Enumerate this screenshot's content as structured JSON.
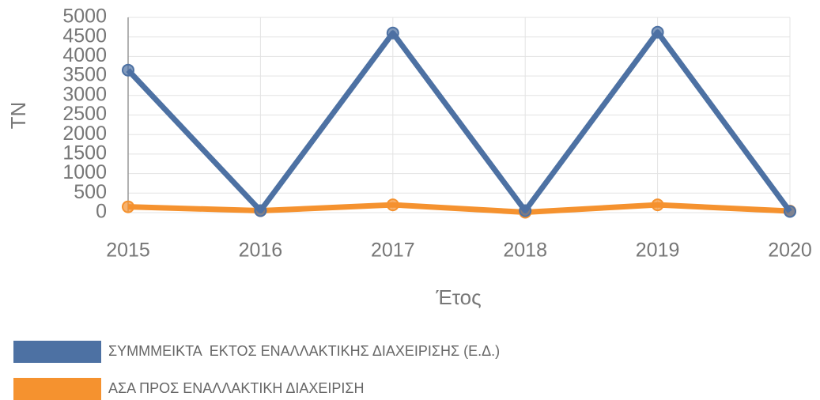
{
  "chart_data": {
    "type": "line",
    "xlabel": "Έτος",
    "ylabel": "TN",
    "categories": [
      "2015",
      "2016",
      "2017",
      "2018",
      "2019",
      "2020"
    ],
    "series": [
      {
        "name": "ΣΥΜΜΜΕΙΚΤΑ  ΕΚΤΟΣ ΕΝΑΛΛΑΚΤΙΚΗΣ ΔΙΑΧΕΙΡΙΣΗΣ (Ε.Δ.)",
        "color": "#4d71a3",
        "values": [
          3650,
          50,
          4600,
          50,
          4620,
          30
        ]
      },
      {
        "name": "ΑΣΑ ΠΡΟΣ ΕΝΑΛΛΑΚΤΙΚΗ ΔΙΑΧΕΙΡΙΣΗ",
        "color": "#f5922f",
        "values": [
          150,
          50,
          200,
          10,
          200,
          40
        ]
      }
    ],
    "ylim": [
      0,
      5000
    ],
    "yticks": [
      0,
      500,
      1000,
      1500,
      2000,
      2500,
      3000,
      3500,
      4000,
      4500,
      5000
    ],
    "grid": true
  }
}
